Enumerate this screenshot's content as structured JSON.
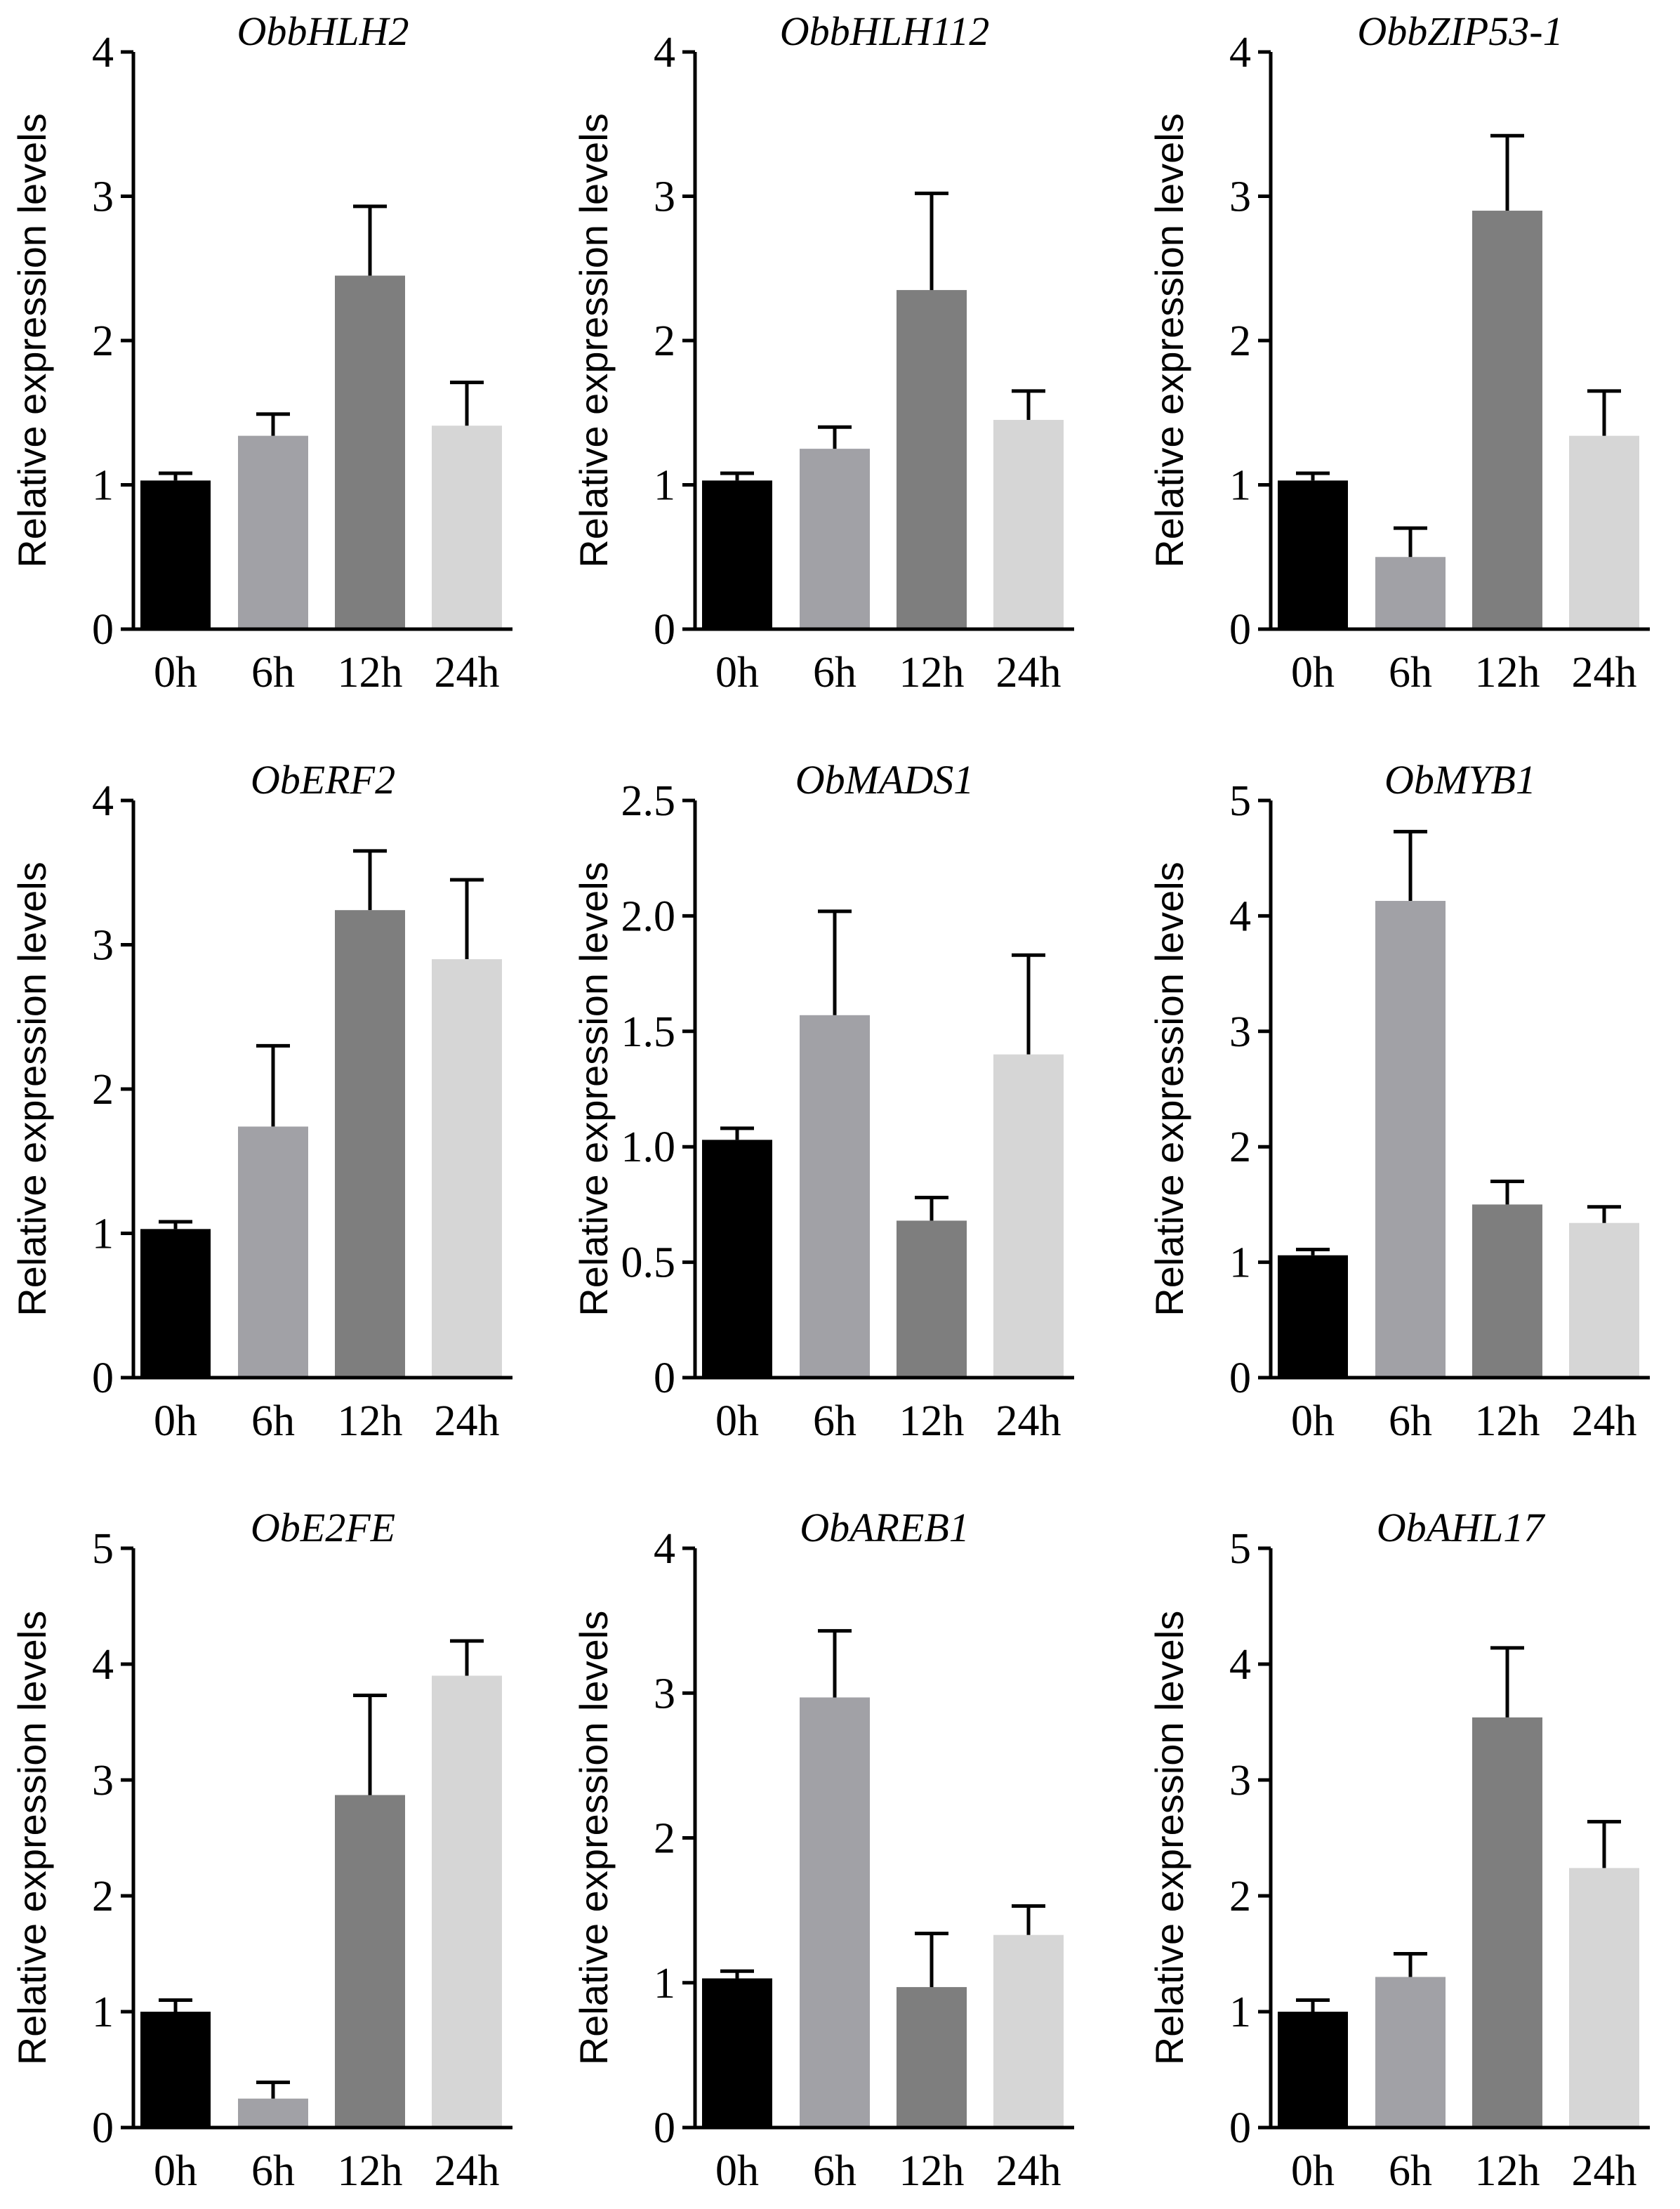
{
  "colors": {
    "0h": "#000000",
    "6h": "#a1a1a6",
    "12h": "#7e7e7e",
    "24h": "#d6d6d6"
  },
  "chart_data": [
    {
      "type": "bar",
      "title": "ObbHLH2",
      "ylabel": "Relative expression levels",
      "categories": [
        "0h",
        "6h",
        "12h",
        "24h"
      ],
      "values": [
        1.03,
        1.34,
        2.45,
        1.41
      ],
      "errors": [
        0.05,
        0.15,
        0.48,
        0.3
      ],
      "ylim": [
        0,
        4
      ],
      "yticks": [
        "0",
        "1",
        "2",
        "3",
        "4"
      ]
    },
    {
      "type": "bar",
      "title": "ObbHLH112",
      "ylabel": "Relative expression levels",
      "categories": [
        "0h",
        "6h",
        "12h",
        "24h"
      ],
      "values": [
        1.03,
        1.25,
        2.35,
        1.45
      ],
      "errors": [
        0.05,
        0.15,
        0.67,
        0.2
      ],
      "ylim": [
        0,
        4
      ],
      "yticks": [
        "0",
        "1",
        "2",
        "3",
        "4"
      ]
    },
    {
      "type": "bar",
      "title": "ObbZIP53-1",
      "ylabel": "Relative expression levels",
      "categories": [
        "0h",
        "6h",
        "12h",
        "24h"
      ],
      "values": [
        1.03,
        0.5,
        2.9,
        1.34
      ],
      "errors": [
        0.05,
        0.2,
        0.52,
        0.31
      ],
      "ylim": [
        0,
        4
      ],
      "yticks": [
        "0",
        "1",
        "2",
        "3",
        "4"
      ]
    },
    {
      "type": "bar",
      "title": "ObERF2",
      "ylabel": "Relative expression levels",
      "categories": [
        "0h",
        "6h",
        "12h",
        "24h"
      ],
      "values": [
        1.03,
        1.74,
        3.24,
        2.9
      ],
      "errors": [
        0.05,
        0.56,
        0.41,
        0.55
      ],
      "ylim": [
        0,
        4
      ],
      "yticks": [
        "0",
        "1",
        "2",
        "3",
        "4"
      ]
    },
    {
      "type": "bar",
      "title": "ObMADS1",
      "ylabel": "Relative expression levels",
      "categories": [
        "0h",
        "6h",
        "12h",
        "24h"
      ],
      "values": [
        1.03,
        1.57,
        0.68,
        1.4
      ],
      "errors": [
        0.05,
        0.45,
        0.1,
        0.43
      ],
      "ylim": [
        0,
        2.5
      ],
      "yticks": [
        "0",
        "0.5",
        "1.0",
        "1.5",
        "2.0",
        "2.5"
      ]
    },
    {
      "type": "bar",
      "title": "ObMYB1",
      "ylabel": "Relative expression levels",
      "categories": [
        "0h",
        "6h",
        "12h",
        "24h"
      ],
      "values": [
        1.06,
        4.13,
        1.5,
        1.34
      ],
      "errors": [
        0.05,
        0.6,
        0.2,
        0.14
      ],
      "ylim": [
        0,
        5
      ],
      "yticks": [
        "0",
        "1",
        "2",
        "3",
        "4",
        "5"
      ]
    },
    {
      "type": "bar",
      "title": "ObE2FE",
      "ylabel": "Relative expression levels",
      "categories": [
        "0h",
        "6h",
        "12h",
        "24h"
      ],
      "values": [
        1.0,
        0.25,
        2.87,
        3.9
      ],
      "errors": [
        0.1,
        0.14,
        0.86,
        0.3
      ],
      "ylim": [
        0,
        5
      ],
      "yticks": [
        "0",
        "1",
        "2",
        "3",
        "4",
        "5"
      ]
    },
    {
      "type": "bar",
      "title": "ObAREB1",
      "ylabel": "Relative expression levels",
      "categories": [
        "0h",
        "6h",
        "12h",
        "24h"
      ],
      "values": [
        1.03,
        2.97,
        0.97,
        1.33
      ],
      "errors": [
        0.05,
        0.46,
        0.37,
        0.2
      ],
      "ylim": [
        0,
        4
      ],
      "yticks": [
        "0",
        "1",
        "2",
        "3",
        "4"
      ]
    },
    {
      "type": "bar",
      "title": "ObAHL17",
      "ylabel": "Relative expression levels",
      "categories": [
        "0h",
        "6h",
        "12h",
        "24h"
      ],
      "values": [
        1.0,
        1.3,
        3.54,
        2.24
      ],
      "errors": [
        0.1,
        0.2,
        0.6,
        0.4
      ],
      "ylim": [
        0,
        5
      ],
      "yticks": [
        "0",
        "1",
        "2",
        "3",
        "4",
        "5"
      ]
    }
  ]
}
